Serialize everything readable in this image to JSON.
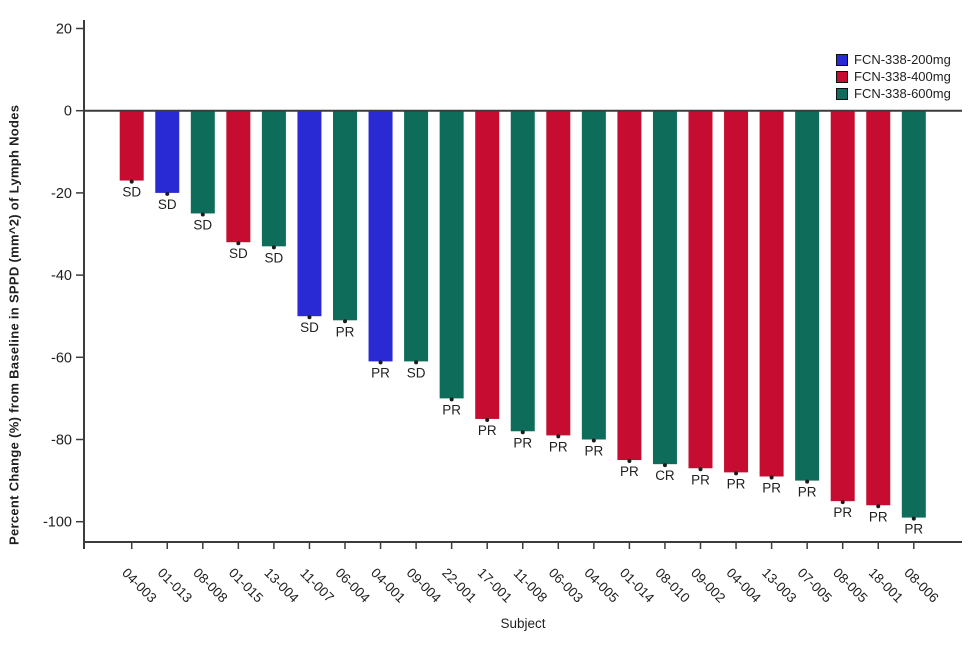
{
  "chart_data": {
    "type": "bar",
    "subtype": "waterfall",
    "title": "",
    "xlabel": "Subject",
    "ylabel": "Percent Change (%) from Baseline in SPPD (mm^2) of Lymph Nodes",
    "ylim": [
      -105,
      22
    ],
    "yticks": [
      20,
      0,
      -20,
      -40,
      -60,
      -80,
      -100
    ],
    "grid": false,
    "legend_position": "top-right",
    "legend": [
      {
        "label": "FCN-338-200mg",
        "color": "#2A2AD5"
      },
      {
        "label": "FCN-338-400mg",
        "color": "#C60C30"
      },
      {
        "label": "FCN-338-600mg",
        "color": "#0E6C5A"
      }
    ],
    "axis_color": "#3C3C3C",
    "text_color": "#1F1F1F",
    "bars": [
      {
        "subject": "04-003",
        "value": -17,
        "group": "FCN-338-400mg",
        "response": "SD"
      },
      {
        "subject": "01-013",
        "value": -20,
        "group": "FCN-338-200mg",
        "response": "SD"
      },
      {
        "subject": "08-008",
        "value": -25,
        "group": "FCN-338-600mg",
        "response": "SD"
      },
      {
        "subject": "01-015",
        "value": -32,
        "group": "FCN-338-400mg",
        "response": "SD"
      },
      {
        "subject": "13-004",
        "value": -33,
        "group": "FCN-338-600mg",
        "response": "SD"
      },
      {
        "subject": "11-007",
        "value": -50,
        "group": "FCN-338-200mg",
        "response": "SD"
      },
      {
        "subject": "06-004",
        "value": -51,
        "group": "FCN-338-600mg",
        "response": "PR"
      },
      {
        "subject": "04-001",
        "value": -61,
        "group": "FCN-338-200mg",
        "response": "PR"
      },
      {
        "subject": "09-004",
        "value": -61,
        "group": "FCN-338-600mg",
        "response": "SD"
      },
      {
        "subject": "22-001",
        "value": -70,
        "group": "FCN-338-600mg",
        "response": "PR"
      },
      {
        "subject": "17-001",
        "value": -75,
        "group": "FCN-338-400mg",
        "response": "PR"
      },
      {
        "subject": "11-008",
        "value": -78,
        "group": "FCN-338-600mg",
        "response": "PR"
      },
      {
        "subject": "06-003",
        "value": -79,
        "group": "FCN-338-400mg",
        "response": "PR"
      },
      {
        "subject": "04-005",
        "value": -80,
        "group": "FCN-338-600mg",
        "response": "PR"
      },
      {
        "subject": "01-014",
        "value": -85,
        "group": "FCN-338-400mg",
        "response": "PR"
      },
      {
        "subject": "08-010",
        "value": -86,
        "group": "FCN-338-600mg",
        "response": "CR"
      },
      {
        "subject": "09-002",
        "value": -87,
        "group": "FCN-338-400mg",
        "response": "PR"
      },
      {
        "subject": "04-004",
        "value": -88,
        "group": "FCN-338-400mg",
        "response": "PR"
      },
      {
        "subject": "13-003",
        "value": -89,
        "group": "FCN-338-400mg",
        "response": "PR"
      },
      {
        "subject": "07-005",
        "value": -90,
        "group": "FCN-338-600mg",
        "response": "PR"
      },
      {
        "subject": "08-005",
        "value": -95,
        "group": "FCN-338-400mg",
        "response": "PR"
      },
      {
        "subject": "18-001",
        "value": -96,
        "group": "FCN-338-400mg",
        "response": "PR"
      },
      {
        "subject": "08-006",
        "value": -99,
        "group": "FCN-338-600mg",
        "response": "PR"
      }
    ]
  }
}
